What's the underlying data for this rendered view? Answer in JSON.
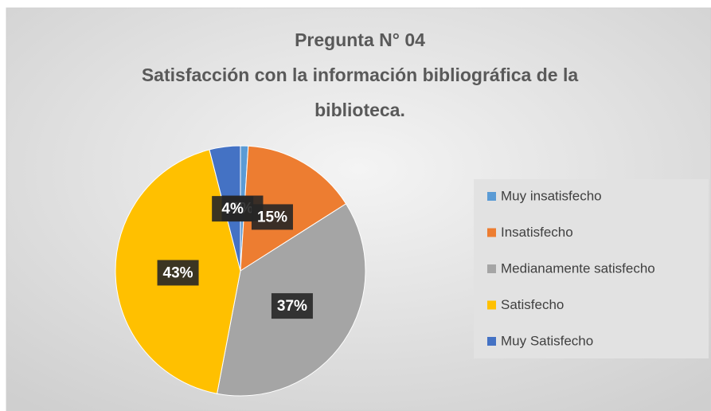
{
  "chart_data": {
    "type": "pie",
    "title_lines": [
      "Pregunta N° 04",
      "Satisfacción con la información bibliográfica de la",
      "biblioteca."
    ],
    "categories": [
      "Muy insatisfecho",
      "Insatisfecho",
      "Medianamente satisfecho",
      "Satisfecho",
      "Muy Satisfecho"
    ],
    "values": [
      1,
      15,
      37,
      43,
      4
    ],
    "value_labels": [
      "1%",
      "15%",
      "37%",
      "43%",
      "4%"
    ],
    "colors": [
      "#5b9bd5",
      "#ed7d31",
      "#a5a5a5",
      "#ffc000",
      "#4472c4"
    ],
    "legend": "right"
  }
}
